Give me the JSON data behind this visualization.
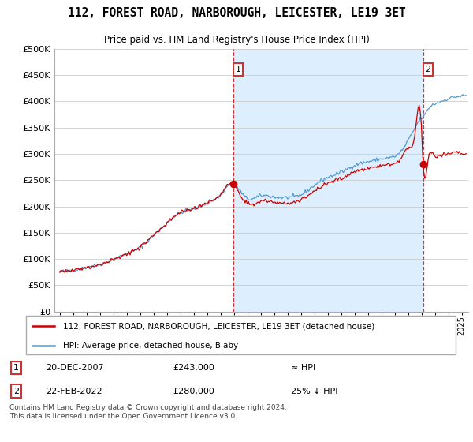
{
  "title": "112, FOREST ROAD, NARBOROUGH, LEICESTER, LE19 3ET",
  "subtitle": "Price paid vs. HM Land Registry's House Price Index (HPI)",
  "legend_line1": "112, FOREST ROAD, NARBOROUGH, LEICESTER, LE19 3ET (detached house)",
  "legend_line2": "HPI: Average price, detached house, Blaby",
  "annotation1_date": "20-DEC-2007",
  "annotation1_price": "£243,000",
  "annotation1_hpi": "≈ HPI",
  "annotation2_date": "22-FEB-2022",
  "annotation2_price": "£280,000",
  "annotation2_hpi": "25% ↓ HPI",
  "footer": "Contains HM Land Registry data © Crown copyright and database right 2024.\nThis data is licensed under the Open Government Licence v3.0.",
  "red_color": "#cc0000",
  "blue_color": "#5599cc",
  "shade_color": "#ddeeff",
  "annotation_box_color": "#cc3333",
  "ylim": [
    0,
    500000
  ],
  "yticks": [
    0,
    50000,
    100000,
    150000,
    200000,
    250000,
    300000,
    350000,
    400000,
    450000,
    500000
  ],
  "sale1_x": 2007.97,
  "sale1_price": 243000,
  "sale2_x": 2022.13,
  "sale2_price": 280000,
  "xstart": 1995.0,
  "xend": 2025.5
}
